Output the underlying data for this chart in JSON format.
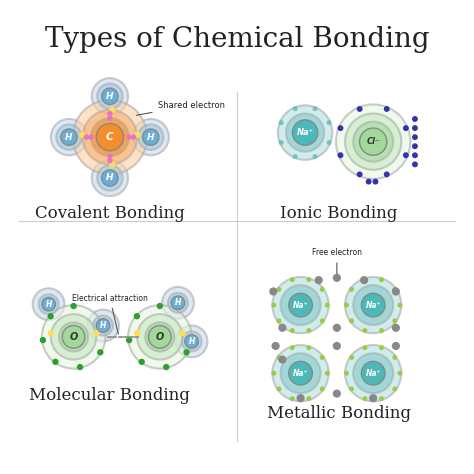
{
  "title": "Types of Chemical Bonding",
  "title_fontsize": 20,
  "background_color": "#ffffff",
  "labels": {
    "covalent": "Covalent Bonding",
    "ionic": "Ionic Bonding",
    "molecular": "Molecular Bonding",
    "metallic": "Metallic Bonding",
    "shared_electron": "Shared electron",
    "electrical_attraction": "Electrical attraction",
    "free_electron": "Free electron"
  },
  "colors": {
    "blue_atom": "#6baed6",
    "blue_atom_light": "#9ecae1",
    "blue_atom_outer": "#c6dbef",
    "orange_atom": "#f28e2b",
    "orange_atom_light": "#fdae6b",
    "orange_atom_outer": "#fdd0a2",
    "green_atom": "#a1d99b",
    "green_atom_light": "#c7e9c0",
    "green_atom_outer": "#e5f5e0",
    "teal_atom": "#4db8b8",
    "teal_atom_light": "#80cccc",
    "teal_atom_outer": "#b3e0e0",
    "pink_electron": "#e377c2",
    "yellow_electron": "#ffdd57",
    "dark_green_electron": "#2ca02c",
    "navy_electron": "#3333aa",
    "gray_electron": "#888888",
    "text_dark": "#222222",
    "annotation_line": "#555555"
  }
}
